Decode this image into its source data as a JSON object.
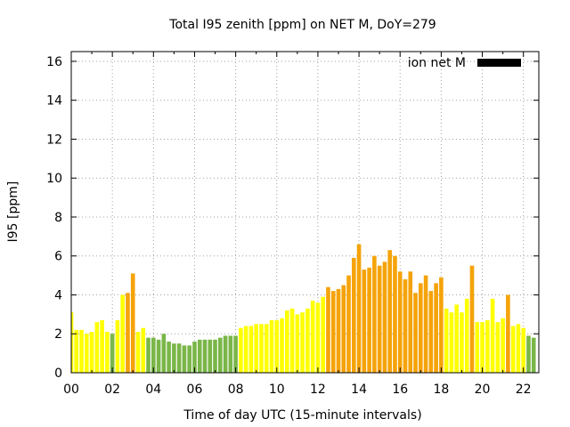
{
  "chart_data": {
    "type": "bar",
    "title": "Total I95 zenith [ppm] on NET M, DoY=279",
    "xlabel": "Time of day UTC (15-minute intervals)",
    "ylabel": "I95 [ppm]",
    "xlim": [
      0,
      22.75
    ],
    "ylim": [
      0,
      16.5
    ],
    "x_ticks": [
      "00",
      "02",
      "04",
      "06",
      "08",
      "10",
      "12",
      "14",
      "16",
      "18",
      "20",
      "22"
    ],
    "y_ticks": [
      "0",
      "2",
      "4",
      "6",
      "8",
      "10",
      "12",
      "14",
      "16"
    ],
    "grid": true,
    "legend": {
      "label": "ion net M",
      "position": "top-right"
    },
    "bar_width_hours": 0.2,
    "colors": {
      "G": "#7ab648",
      "Y": "#ffff00",
      "O": "#f5a30a",
      "K": "#000000"
    },
    "series": [
      {
        "name": "ion net M",
        "start_hour": 0,
        "step_hours": 0.25,
        "values": [
          3.1,
          2.2,
          2.2,
          2.0,
          2.1,
          2.6,
          2.7,
          2.1,
          2.0,
          2.7,
          4.0,
          4.1,
          5.1,
          2.1,
          2.3,
          1.8,
          1.8,
          1.7,
          2.0,
          1.6,
          1.5,
          1.5,
          1.4,
          1.4,
          1.6,
          1.7,
          1.7,
          1.7,
          1.7,
          1.8,
          1.9,
          1.9,
          1.9,
          2.3,
          2.4,
          2.4,
          2.5,
          2.5,
          2.5,
          2.7,
          2.7,
          2.8,
          3.2,
          3.3,
          3.0,
          3.1,
          3.3,
          3.7,
          3.6,
          3.9,
          4.4,
          4.2,
          4.3,
          4.5,
          5.0,
          5.9,
          6.6,
          5.3,
          5.4,
          6.0,
          5.5,
          5.7,
          6.3,
          6.0,
          5.2,
          4.8,
          5.2,
          4.1,
          4.6,
          5.0,
          4.2,
          4.6,
          4.9,
          3.3,
          3.1,
          3.5,
          3.1,
          3.8,
          5.5,
          2.6,
          2.6,
          2.7,
          3.8,
          2.6,
          2.8,
          4.0,
          2.4,
          2.5,
          2.3,
          1.9,
          1.8
        ],
        "categories": [
          "Y",
          "Y",
          "Y",
          "Y",
          "Y",
          "Y",
          "Y",
          "Y",
          "G",
          "Y",
          "Y",
          "O",
          "O",
          "Y",
          "Y",
          "G",
          "G",
          "G",
          "G",
          "G",
          "G",
          "G",
          "G",
          "G",
          "G",
          "G",
          "G",
          "G",
          "G",
          "G",
          "G",
          "G",
          "G",
          "Y",
          "Y",
          "Y",
          "Y",
          "Y",
          "Y",
          "Y",
          "Y",
          "Y",
          "Y",
          "Y",
          "Y",
          "Y",
          "Y",
          "Y",
          "Y",
          "Y",
          "O",
          "O",
          "O",
          "O",
          "O",
          "O",
          "O",
          "O",
          "O",
          "O",
          "O",
          "O",
          "O",
          "O",
          "O",
          "O",
          "O",
          "O",
          "O",
          "O",
          "O",
          "O",
          "O",
          "Y",
          "Y",
          "Y",
          "Y",
          "Y",
          "O",
          "Y",
          "Y",
          "Y",
          "Y",
          "Y",
          "Y",
          "O",
          "Y",
          "Y",
          "Y",
          "G",
          "G"
        ]
      }
    ]
  }
}
